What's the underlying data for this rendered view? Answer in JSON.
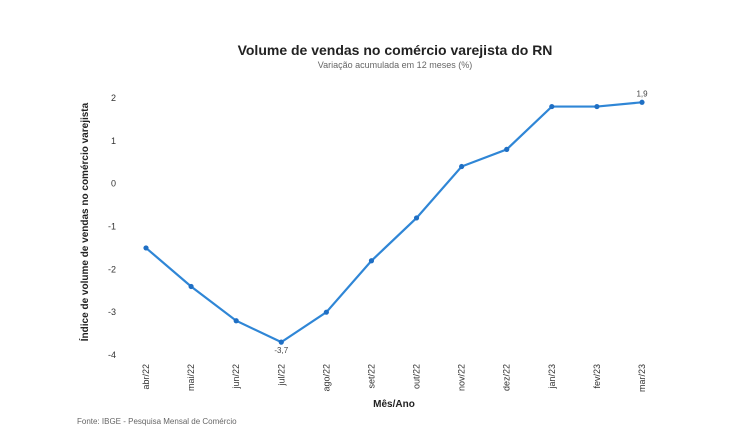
{
  "chart_data": {
    "type": "line",
    "title": "Volume de vendas no comércio varejista do RN",
    "subtitle": "Variação acumulada em 12 meses (%)",
    "xlabel": "Mês/Ano",
    "ylabel": "Índice de volume de vendas no comércio varejista",
    "categories": [
      "abr/22",
      "mai/22",
      "jun/22",
      "jul/22",
      "ago/22",
      "set/22",
      "out/22",
      "nov/22",
      "dez/22",
      "jan/23",
      "fev/23",
      "mar/23"
    ],
    "values": [
      -1.5,
      -2.4,
      -3.2,
      -3.7,
      -3.0,
      -1.8,
      -0.8,
      0.4,
      0.8,
      1.8,
      1.8,
      1.9
    ],
    "data_labels": [
      {
        "index": 3,
        "text": "-3,7"
      },
      {
        "index": 11,
        "text": "1,9"
      }
    ],
    "yticks": [
      "2",
      "1",
      "0",
      "-1",
      "-2",
      "-3",
      "-4"
    ],
    "ytick_values": [
      2,
      1,
      0,
      -1,
      -2,
      -3,
      -4
    ],
    "ylim": [
      -4,
      2
    ],
    "grid": false,
    "color": "#2f86d6"
  },
  "source": "Fonte: IBGE - Pesquisa Mensal de Comércio"
}
